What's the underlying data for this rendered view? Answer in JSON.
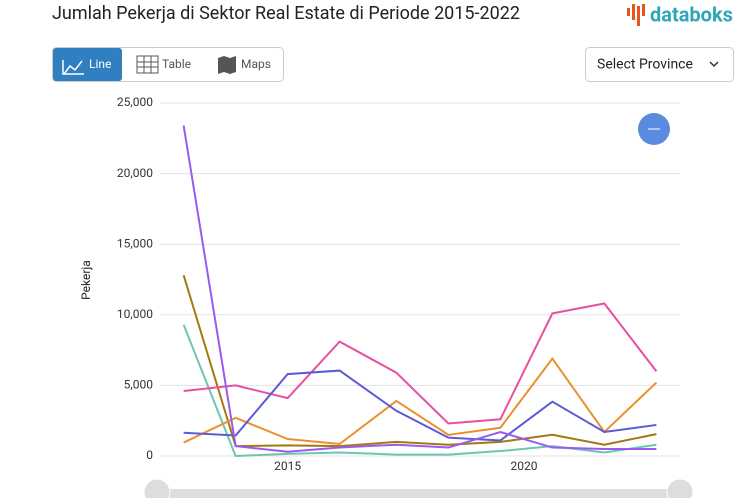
{
  "header": {
    "title": "Jumlah Pekerja di Sektor Real Estate di Periode 2015-2022",
    "logo": "databoks"
  },
  "tabs": [
    "Line",
    "Table",
    "Maps"
  ],
  "select": "Select Province",
  "chart_data": {
    "type": "line",
    "y_label": "Pekerja",
    "x": [
      2012.8,
      2013.9,
      2015.0,
      2016.1,
      2017.3,
      2018.4,
      2019.5,
      2020.6,
      2021.7,
      2022.8
    ],
    "xlim": [
      2012.3,
      2023.3
    ],
    "xticks": [
      2015,
      2020
    ],
    "ylim": [
      0,
      25000
    ],
    "yticks": [
      0,
      {
        "value": 5000,
        "label": "5,000"
      },
      {
        "value": 10000,
        "label": "10,000"
      },
      {
        "value": 15000,
        "label": "15,000"
      },
      {
        "value": 20000,
        "label": "20,000"
      },
      {
        "value": 25000,
        "label": "25,000"
      }
    ],
    "grid": true,
    "series": [
      {
        "color": "#6cc5b0",
        "values": [
          9300,
          0,
          150,
          250,
          100,
          100,
          350,
          700,
          250,
          800
        ]
      },
      {
        "color": "#a07a10",
        "values": [
          12800,
          700,
          750,
          700,
          1000,
          800,
          1000,
          1500,
          800,
          1550
        ]
      },
      {
        "color": "#e8912d",
        "values": [
          950,
          2700,
          1200,
          850,
          3900,
          1500,
          2000,
          6900,
          1700,
          5200
        ]
      },
      {
        "color": "#e84fa3",
        "values": [
          4600,
          5000,
          4100,
          8100,
          5900,
          2300,
          2600,
          10100,
          10800,
          6000
        ]
      },
      {
        "color": "#5b5bd6",
        "values": [
          1650,
          1450,
          5800,
          6050,
          3200,
          1300,
          1100,
          3850,
          1700,
          2200
        ]
      },
      {
        "color": "#9b59f0",
        "values": [
          23400,
          700,
          300,
          600,
          800,
          600,
          1700,
          600,
          500,
          500
        ]
      }
    ]
  }
}
